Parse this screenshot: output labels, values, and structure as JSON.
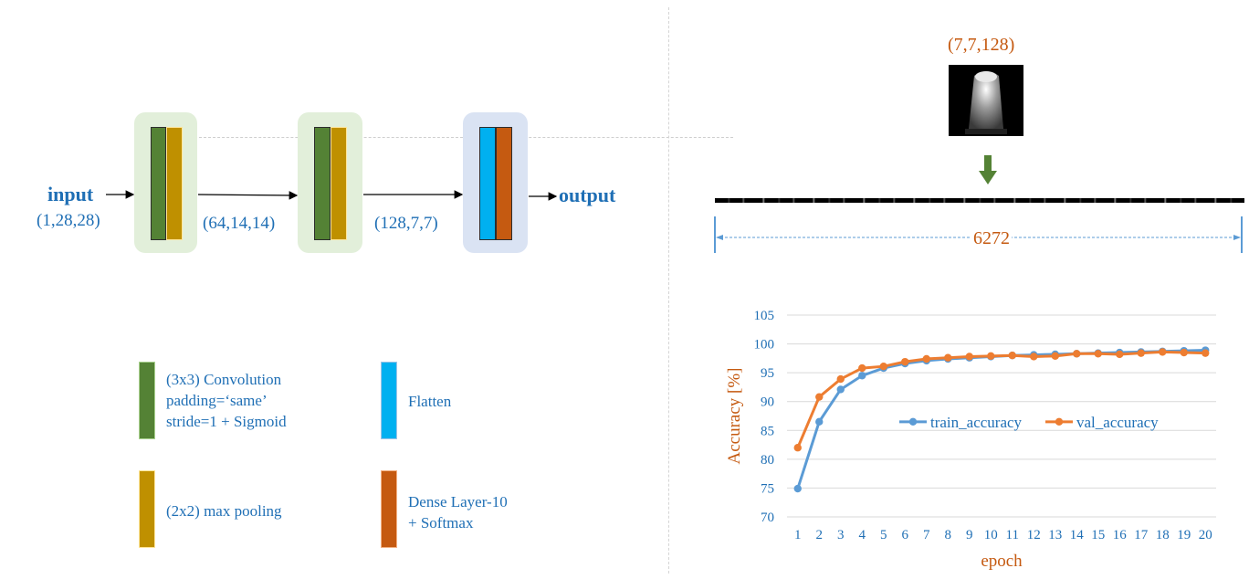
{
  "colors": {
    "conv": "#548235",
    "pool": "#BF9000",
    "flatten": "#00B0F0",
    "dense": "#C55A11",
    "group_green": "#E2EFDA",
    "group_blue": "#DAE3F3",
    "label_blue": "#1F6FB5",
    "label_orange": "#C55A11",
    "train_series": "#5B9BD5",
    "val_series": "#ED7D31",
    "down_arrow": "#548235"
  },
  "network": {
    "input_label": "input",
    "input_shape": "(1,28,28)",
    "shape_after_block1": "(64,14,14)",
    "shape_after_block2": "(128,7,7)",
    "output_label": "output"
  },
  "legend": {
    "conv": "(3x3) Convolution\npadding=‘same’\nstride=1 + Sigmoid",
    "flatten": "Flatten",
    "pool": "(2x2) max pooling",
    "dense": "Dense Layer-10\n+ Softmax"
  },
  "feature_map": {
    "shape_label": "(7,7,128)",
    "flatten_length": "6272",
    "icons": [
      "feature-map-image",
      "down-arrow-icon",
      "flattened-vector-strip"
    ]
  },
  "chart_data": {
    "type": "line",
    "title": "",
    "xlabel": "epoch",
    "ylabel": "Accuracy [%]",
    "ylim": [
      70,
      105
    ],
    "yticks": [
      70,
      75,
      80,
      85,
      90,
      95,
      100,
      105
    ],
    "grid": "horizontal",
    "legend_position": "middle-right",
    "x": [
      1,
      2,
      3,
      4,
      5,
      6,
      7,
      8,
      9,
      10,
      11,
      12,
      13,
      14,
      15,
      16,
      17,
      18,
      19,
      20
    ],
    "series": [
      {
        "name": "train_accuracy",
        "color": "#5B9BD5",
        "values": [
          74.9,
          86.5,
          92.1,
          94.5,
          95.8,
          96.6,
          97.1,
          97.4,
          97.6,
          97.8,
          98.0,
          98.1,
          98.2,
          98.3,
          98.4,
          98.5,
          98.6,
          98.7,
          98.8,
          98.9
        ]
      },
      {
        "name": "val_accuracy",
        "color": "#ED7D31",
        "values": [
          82.0,
          90.8,
          93.9,
          95.8,
          96.1,
          96.9,
          97.4,
          97.6,
          97.8,
          97.9,
          98.0,
          97.8,
          97.9,
          98.3,
          98.3,
          98.2,
          98.4,
          98.6,
          98.5,
          98.4
        ]
      }
    ]
  }
}
